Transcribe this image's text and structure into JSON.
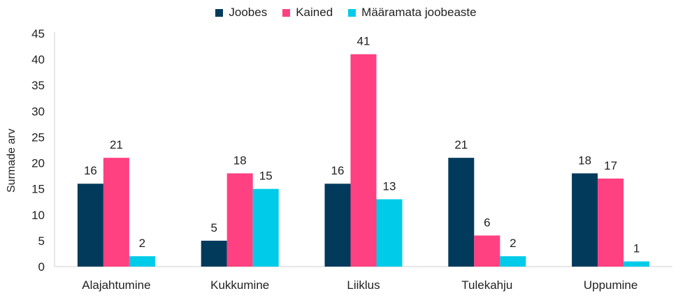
{
  "chart_data": {
    "type": "bar",
    "title": "",
    "xlabel": "",
    "ylabel": "Surmade arv",
    "ylim": [
      0,
      45
    ],
    "yticks": [
      0,
      5,
      10,
      15,
      20,
      25,
      30,
      35,
      40,
      45
    ],
    "categories": [
      "Alajahtumine",
      "Kukkumine",
      "Liiklus",
      "Tulekahju",
      "Uppumine"
    ],
    "series": [
      {
        "name": "Joobes",
        "values": [
          16,
          5,
          16,
          21,
          18
        ],
        "color": "#023a5c"
      },
      {
        "name": "Kained",
        "values": [
          21,
          18,
          41,
          6,
          17
        ],
        "color": "#ff4081"
      },
      {
        "name": "Määramata joobeaste",
        "values": [
          2,
          15,
          13,
          2,
          1
        ],
        "color": "#00cbe8"
      }
    ],
    "grid": false,
    "legend_position": "top-center"
  }
}
